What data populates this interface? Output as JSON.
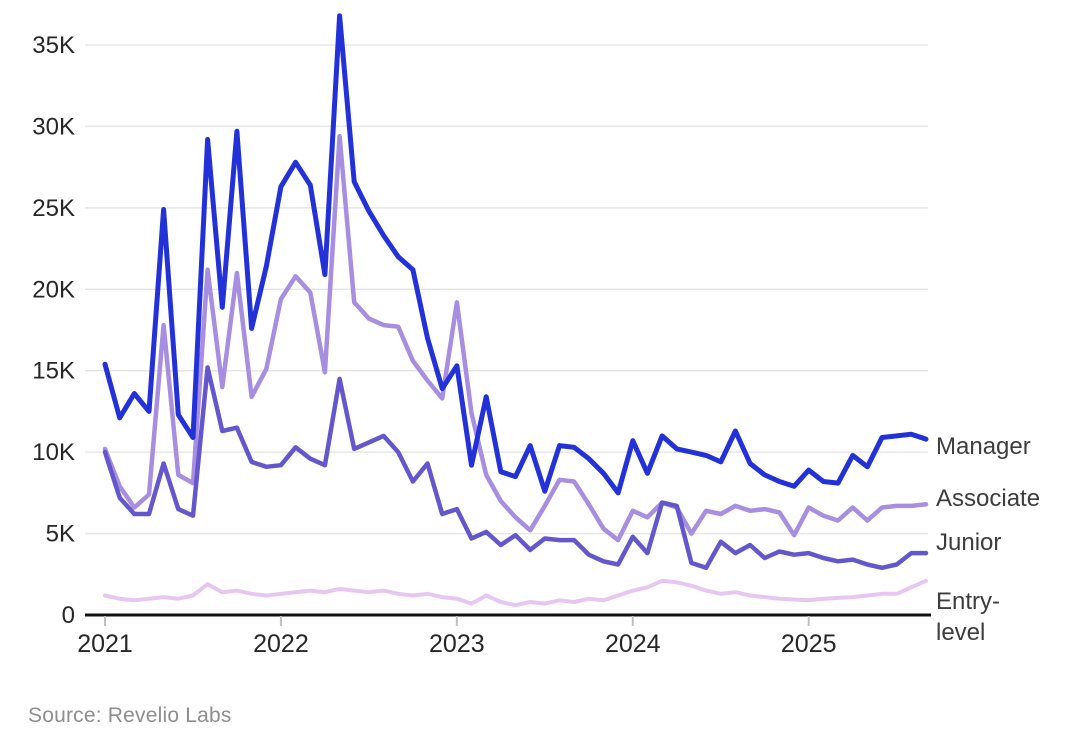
{
  "chart_data": {
    "type": "line",
    "title": "",
    "xlabel": "",
    "ylabel": "",
    "unit": "thousands (K)",
    "x_start": "2021-01",
    "x_end": "2025-09",
    "points_per_series": 57,
    "x_tick_labels": [
      "2021",
      "2022",
      "2023",
      "2024",
      "2025"
    ],
    "y_ticks": [
      {
        "value": 0,
        "label": "0"
      },
      {
        "value": 5,
        "label": "5K"
      },
      {
        "value": 10,
        "label": "10K"
      },
      {
        "value": 15,
        "label": "15K"
      },
      {
        "value": 20,
        "label": "20K"
      },
      {
        "value": 25,
        "label": "25K"
      },
      {
        "value": 30,
        "label": "30K"
      },
      {
        "value": 35,
        "label": "35K"
      }
    ],
    "ylim": [
      0,
      37
    ],
    "grid": "horizontal-only",
    "legend_position": "right-end-of-lines",
    "series": [
      {
        "name": "Entry-level",
        "label_lines": [
          "Entry-",
          "level"
        ],
        "color": "#e7c7f1",
        "stroke_width": 4,
        "values": [
          1.2,
          1.0,
          0.9,
          1.0,
          1.1,
          1.0,
          1.2,
          1.9,
          1.4,
          1.5,
          1.3,
          1.2,
          1.3,
          1.4,
          1.5,
          1.4,
          1.6,
          1.5,
          1.4,
          1.5,
          1.3,
          1.2,
          1.3,
          1.1,
          1.0,
          0.7,
          1.2,
          0.8,
          0.6,
          0.8,
          0.7,
          0.9,
          0.8,
          1.0,
          0.9,
          1.2,
          1.5,
          1.7,
          2.1,
          2.0,
          1.8,
          1.5,
          1.3,
          1.4,
          1.2,
          1.1,
          1.0,
          0.95,
          0.9,
          1.0,
          1.05,
          1.1,
          1.2,
          1.3,
          1.3,
          1.7,
          2.1
        ]
      },
      {
        "name": "Associate",
        "label_lines": [
          "Associate"
        ],
        "color": "#a78ee0",
        "stroke_width": 4.5,
        "values": [
          10.2,
          7.9,
          6.6,
          7.4,
          17.8,
          8.6,
          8.1,
          21.2,
          14.0,
          21.0,
          13.4,
          15.1,
          19.4,
          20.8,
          19.8,
          14.9,
          29.4,
          19.2,
          18.2,
          17.8,
          17.7,
          15.6,
          14.4,
          13.3,
          19.2,
          12.4,
          8.6,
          7.0,
          6.0,
          5.2,
          6.7,
          8.3,
          8.2,
          6.8,
          5.3,
          4.6,
          6.4,
          6.0,
          6.9,
          6.6,
          5.0,
          6.4,
          6.2,
          6.7,
          6.4,
          6.5,
          6.3,
          4.9,
          6.6,
          6.1,
          5.8,
          6.6,
          5.8,
          6.6,
          6.7,
          6.7,
          6.8
        ]
      },
      {
        "name": "Junior",
        "label_lines": [
          "Junior"
        ],
        "color": "#6457cd",
        "stroke_width": 4.5,
        "values": [
          10.0,
          7.2,
          6.2,
          6.2,
          9.3,
          6.5,
          6.1,
          15.2,
          11.3,
          11.5,
          9.4,
          9.1,
          9.2,
          10.3,
          9.6,
          9.2,
          14.5,
          10.2,
          10.6,
          11.0,
          10.0,
          8.2,
          9.3,
          6.2,
          6.5,
          4.7,
          5.1,
          4.3,
          4.9,
          4.0,
          4.7,
          4.6,
          4.6,
          3.7,
          3.3,
          3.1,
          4.8,
          3.8,
          6.9,
          6.7,
          3.2,
          2.9,
          4.5,
          3.8,
          4.3,
          3.5,
          3.9,
          3.7,
          3.8,
          3.5,
          3.3,
          3.4,
          3.1,
          2.9,
          3.1,
          3.8,
          3.8
        ]
      },
      {
        "name": "Manager",
        "label_lines": [
          "Manager"
        ],
        "color": "#2231d8",
        "stroke_width": 5,
        "values": [
          15.4,
          12.1,
          13.6,
          12.5,
          24.9,
          12.3,
          10.9,
          29.2,
          18.9,
          29.7,
          17.6,
          21.4,
          26.3,
          27.8,
          26.4,
          20.9,
          36.8,
          26.6,
          24.8,
          23.3,
          22.0,
          21.2,
          17.0,
          13.9,
          15.3,
          9.2,
          13.4,
          8.8,
          8.5,
          10.4,
          7.6,
          10.4,
          10.3,
          9.6,
          8.7,
          7.5,
          10.7,
          8.7,
          11.0,
          10.2,
          10.0,
          9.8,
          9.4,
          11.3,
          9.3,
          8.6,
          8.2,
          7.9,
          8.9,
          8.2,
          8.1,
          9.8,
          9.1,
          10.9,
          11.0,
          11.1,
          10.8
        ]
      }
    ],
    "colors": {
      "grid": "#e7e7e7",
      "axis": "#111111",
      "tick_mark": "#c0c0c0",
      "tick_text": "#262626",
      "series_label_text": "#3d3d3d",
      "source_text": "#8e8e8e"
    }
  },
  "source": {
    "label": "Source: Revelio Labs"
  }
}
